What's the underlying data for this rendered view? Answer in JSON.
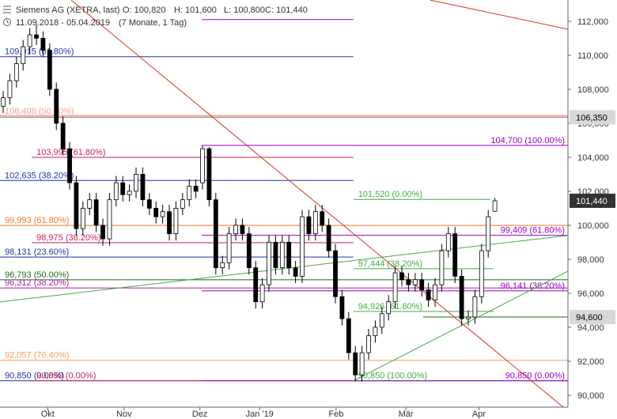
{
  "chart_data": {
    "type": "candlestick",
    "title": "Siemens AG (XETRA, last)",
    "ohlc_labels": [
      "O: 100,820",
      "H: 101,600",
      "L: 100,800",
      "C: 101,440"
    ],
    "date_range": "11.09.2018 - 05.04.2019",
    "period": "(7 Monate, 1 Tag)",
    "categories": [
      null,
      null,
      null,
      null,
      null,
      null,
      null,
      null,
      null,
      null,
      null,
      null,
      null,
      null,
      null,
      null,
      null,
      null,
      null,
      null,
      null,
      null,
      null,
      null,
      null,
      null,
      null,
      null,
      null,
      null,
      null,
      null,
      null,
      null,
      null,
      null,
      null,
      null,
      null,
      null,
      null,
      null,
      null,
      null,
      null,
      null,
      null,
      null,
      null,
      null,
      null,
      null,
      null,
      null,
      null,
      null,
      null,
      null,
      null,
      null,
      null,
      null,
      null,
      null,
      null,
      null,
      null,
      null,
      null,
      null,
      null,
      null,
      null,
      null,
      null
    ],
    "open": [
      107.0,
      107.5,
      108.5,
      109.5,
      110.5,
      111.2,
      111.0,
      110.3,
      108.0,
      106.0,
      104.5,
      102.5,
      99.8,
      101.0,
      101.5,
      100.0,
      99.2,
      101.5,
      102.5,
      101.8,
      102.0,
      103.0,
      101.5,
      101.0,
      100.5,
      100.8,
      99.5,
      101.0,
      101.5,
      102.3,
      102.5,
      104.5,
      101.5,
      97.5,
      97.8,
      99.5,
      100.0,
      99.5,
      97.5,
      95.5,
      96.5,
      99.0,
      97.5,
      99.0,
      97.5,
      97.0,
      100.5,
      99.5,
      100.8,
      100.0,
      98.5,
      95.8,
      94.5,
      92.5,
      91.2,
      92.5,
      93.5,
      94.0,
      94.8,
      95.5,
      97.2,
      96.8,
      96.5,
      96.8,
      96.2,
      95.6,
      96.5,
      98.5,
      99.5,
      97.0,
      94.5,
      94.6,
      95.8,
      98.5,
      100.82
    ],
    "high": [
      107.9,
      108.9,
      109.9,
      110.9,
      111.6,
      111.8,
      111.4,
      110.7,
      108.4,
      106.4,
      104.9,
      102.9,
      101.4,
      101.9,
      101.9,
      100.4,
      101.9,
      102.9,
      102.9,
      102.4,
      103.4,
      103.4,
      101.9,
      101.4,
      101.2,
      101.2,
      101.4,
      101.9,
      102.7,
      102.7,
      104.7,
      104.6,
      101.9,
      98.2,
      99.9,
      100.4,
      100.4,
      99.9,
      97.9,
      96.9,
      99.4,
      99.4,
      99.4,
      99.4,
      97.9,
      100.9,
      100.9,
      101.2,
      101.2,
      100.4,
      98.9,
      96.2,
      94.9,
      92.9,
      92.9,
      93.9,
      94.4,
      95.2,
      95.9,
      97.6,
      97.6,
      97.2,
      97.2,
      97.2,
      96.6,
      96.9,
      98.9,
      99.9,
      99.9,
      97.4,
      95.0,
      96.2,
      98.9,
      100.9,
      101.6
    ],
    "low": [
      106.6,
      107.1,
      108.1,
      109.1,
      110.1,
      110.6,
      109.9,
      107.6,
      105.6,
      104.1,
      102.1,
      99.4,
      99.4,
      100.6,
      99.6,
      98.8,
      98.8,
      101.1,
      101.4,
      101.4,
      101.6,
      101.1,
      100.6,
      100.1,
      100.1,
      99.1,
      99.1,
      100.6,
      101.1,
      101.6,
      102.1,
      101.1,
      97.1,
      97.1,
      97.4,
      99.1,
      99.1,
      97.1,
      95.1,
      95.1,
      96.1,
      97.1,
      97.1,
      97.1,
      96.6,
      96.6,
      99.1,
      99.1,
      99.6,
      98.1,
      95.4,
      94.1,
      92.1,
      90.8,
      90.8,
      92.1,
      93.1,
      93.6,
      94.4,
      95.1,
      96.4,
      96.1,
      96.1,
      95.8,
      95.2,
      95.2,
      96.1,
      98.1,
      96.6,
      94.1,
      94.1,
      94.2,
      95.4,
      98.1,
      100.8
    ],
    "close": [
      107.5,
      108.5,
      109.5,
      110.5,
      111.2,
      111.0,
      110.3,
      108.0,
      106.0,
      104.5,
      102.5,
      99.8,
      101.0,
      101.5,
      100.0,
      99.2,
      101.5,
      102.5,
      101.8,
      102.0,
      103.0,
      101.5,
      101.0,
      100.5,
      100.8,
      99.5,
      101.0,
      101.5,
      102.3,
      102.0,
      104.5,
      101.5,
      97.5,
      97.8,
      99.5,
      100.0,
      99.5,
      97.5,
      95.5,
      96.5,
      99.0,
      97.5,
      99.0,
      97.5,
      97.0,
      100.5,
      99.5,
      100.8,
      100.0,
      98.5,
      95.8,
      94.5,
      92.5,
      91.2,
      92.5,
      93.5,
      94.0,
      94.8,
      95.5,
      97.2,
      96.8,
      96.5,
      96.8,
      96.2,
      95.6,
      96.5,
      98.5,
      99.5,
      97.0,
      94.5,
      94.6,
      95.8,
      98.5,
      100.5,
      101.44
    ],
    "up_color": "#ffffff",
    "down_color": "#000000",
    "wick_color": "#000000",
    "xlim": [
      -0.48,
      85
    ],
    "xticks": [
      {
        "value": 6.7,
        "label": "Okt"
      },
      {
        "value": 18.2,
        "label": "Nov"
      },
      {
        "value": 29.6,
        "label": "Dez"
      },
      {
        "value": 38.6,
        "label": "Jan '19"
      },
      {
        "value": 50.1,
        "label": "Feb"
      },
      {
        "value": 60.6,
        "label": "Mär"
      },
      {
        "value": 71.6,
        "label": "Apr"
      }
    ],
    "ylim": [
      89.3,
      113.25
    ],
    "yticks": [
      {
        "value": 90,
        "label": "90,000"
      },
      {
        "value": 92,
        "label": "92,000"
      },
      {
        "value": 94,
        "label": "94,000"
      },
      {
        "value": 96,
        "label": "96,000"
      },
      {
        "value": 98,
        "label": "98,000"
      },
      {
        "value": 100,
        "label": "100,000"
      },
      {
        "value": 102,
        "label": "102,000"
      },
      {
        "value": 104,
        "label": "104,000"
      },
      {
        "value": 106,
        "label": "106,000"
      },
      {
        "value": 108,
        "label": "108,000"
      },
      {
        "value": 110,
        "label": "110,000"
      },
      {
        "value": 112,
        "label": "112,000"
      }
    ],
    "axis_side": "right",
    "grid": false,
    "levels": [
      {
        "value": 112.1,
        "color": "#9900cc",
        "from": 29.9,
        "to": 52.7
      },
      {
        "value": 109.915,
        "label": "109,915 (61.80%)",
        "color": "#2233aa",
        "from": -0.48,
        "to": 52.7
      },
      {
        "value": 106.408,
        "label": "106,408 (50.00%)",
        "color": "#f4a090",
        "from": -0.48,
        "to": 85,
        "width": 4
      },
      {
        "value": 106.35,
        "color": "#999999",
        "from": -0.48,
        "to": 85
      },
      {
        "value": 104.7,
        "label": "104,700 (100.00%)",
        "color": "#9900cc",
        "from": 29.9,
        "to": 85,
        "label_at": "end"
      },
      {
        "value": 103.995,
        "label": "103,995 (61.80%)",
        "color": "#cc2255",
        "from": 4.3,
        "to": 52.7
      },
      {
        "value": 102.635,
        "label": "102,635 (38.20%)",
        "color": "#2233aa",
        "from": -0.48,
        "to": 52.7
      },
      {
        "value": 101.52,
        "label": "101,520 (0.00%)",
        "color": "#44aa44",
        "from": 52.7,
        "to": 73.3
      },
      {
        "value": 99.993,
        "label": "99,993 (61.80%)",
        "color": "#f07828",
        "from": -0.48,
        "to": 85
      },
      {
        "value": 99.409,
        "label": "99,409 (61.80%)",
        "color": "#9900cc",
        "from": 29.9,
        "to": 85,
        "label_at": "end"
      },
      {
        "value": 98.975,
        "label": "98,975 (38.20%)",
        "color": "#cc2255",
        "from": 4.3,
        "to": 52.7
      },
      {
        "value": 98.131,
        "label": "98,131 (23.60%)",
        "color": "#2233aa",
        "from": -0.48,
        "to": 52.7
      },
      {
        "value": 97.444,
        "label": "97,444 (38.20%)",
        "color": "#44aa44",
        "from": 52.7,
        "to": 73.8
      },
      {
        "value": 96.793,
        "label": "96,793 (50.00%)",
        "color": "#226622",
        "from": -0.48,
        "to": 85
      },
      {
        "value": 96.312,
        "label": "96,312 (38.20%)",
        "color": "#aa2299",
        "from": -0.48,
        "to": 85
      },
      {
        "value": 96.141,
        "label": "96,141 (38.20%)",
        "color": "#9900cc",
        "from": 29.9,
        "to": 85,
        "label_at": "end"
      },
      {
        "value": 94.926,
        "label": "94,926 (61.80%)",
        "color": "#44aa44",
        "from": 52.7,
        "to": 73.8
      },
      {
        "value": 94.6,
        "color": "#226622",
        "from": 63.2,
        "to": 85
      },
      {
        "value": 92.057,
        "label": "92,057 (76.40%)",
        "color": "#f0a060",
        "from": -0.48,
        "to": 85
      },
      {
        "value": 90.85,
        "label": "90,850 (0.00%)",
        "color": "#2233aa",
        "from": -0.48,
        "to": 85
      },
      {
        "value": 90.85,
        "label": "90,850 (0.00%)",
        "color": "#cc2255",
        "from": 4.3,
        "to": 52.7
      },
      {
        "value": 90.85,
        "label": "90,850 (100.00%)",
        "color": "#44aa44",
        "from": 52.7,
        "to": 73.8
      },
      {
        "value": 90.85,
        "label": "90,850 (0.00%)",
        "color": "#9900cc",
        "from": 29.9,
        "to": 85,
        "label_at": "end"
      }
    ],
    "trendlines": [
      {
        "color": "#dd3322",
        "x": [
          10.2,
          85
        ],
        "y": [
          113.25,
          89.07
        ]
      },
      {
        "color": "#dd3322",
        "x": [
          64.2,
          85
        ],
        "y": [
          113.25,
          111.53
        ]
      },
      {
        "color": "#44aa44",
        "x": [
          -0.48,
          85
        ],
        "y": [
          95.49,
          99.4
        ]
      },
      {
        "color": "#44aa44",
        "x": [
          52.7,
          85
        ],
        "y": [
          90.85,
          97.3
        ]
      }
    ],
    "price_markers": [
      {
        "value": 106.35,
        "label": "106,350",
        "fill": "#d8d8d8",
        "text_color": "#000000"
      },
      {
        "value": 101.44,
        "label": "101,440",
        "fill": "#333333",
        "text_color": "#ffffff"
      },
      {
        "value": 94.6,
        "label": "94,600",
        "fill": "#d8d8d8",
        "text_color": "#000000"
      }
    ]
  }
}
